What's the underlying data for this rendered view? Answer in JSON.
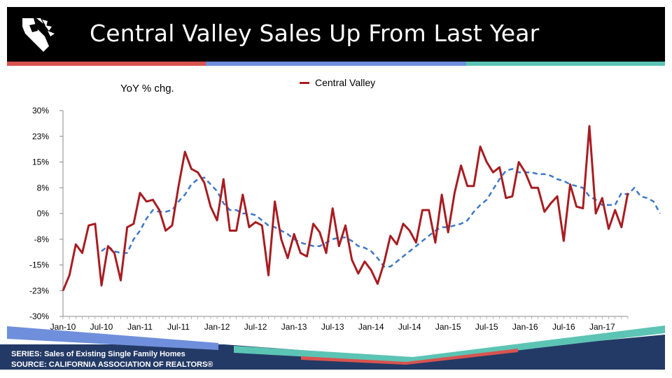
{
  "header": {
    "title": "Central Valley Sales Up From Last Year",
    "logo_icon": "california-realtors-logo-icon"
  },
  "colors": {
    "header_bg": "#000000",
    "stripe_red": "#d9534f",
    "stripe_blue": "#6f8fdc",
    "stripe_teal": "#5cc4b4",
    "series": "#a71d22",
    "trend": "#3d78c8",
    "footer_navy": "#243a66"
  },
  "chart_data": {
    "type": "line",
    "ylabel": "YoY % chg.",
    "xlabel": "",
    "ylim": [
      -30,
      30
    ],
    "yticks": [
      "30%",
      "23%",
      "15%",
      "8%",
      "0%",
      "-8%",
      "-15%",
      "-23%",
      "-30%"
    ],
    "xticks": [
      "Jan-10",
      "Jul-10",
      "Jan-11",
      "Jul-11",
      "Jan-12",
      "Jul-12",
      "Jan-13",
      "Jul-13",
      "Jan-14",
      "Jul-14",
      "Jan-15",
      "Jul-15",
      "Jan-16",
      "Jul-16",
      "Jan-17"
    ],
    "grid": false,
    "legend_position": "top",
    "series": [
      {
        "name": "Central Valley",
        "style": "solid",
        "start": "Jan-10",
        "values": [
          -22.5,
          -18,
          -9,
          -11.5,
          -3.5,
          -3,
          -21,
          -9.5,
          -11.5,
          -19.5,
          -4,
          -3,
          6,
          3.5,
          4,
          1,
          -5,
          -3.5,
          8,
          18,
          13,
          12,
          9,
          2,
          -2,
          10,
          -5,
          -5,
          5.5,
          -4,
          -2.5,
          -3.5,
          -18,
          3.5,
          -7.5,
          -13,
          -6,
          -11.5,
          -12.5,
          -3,
          -5.5,
          -11.5,
          1.5,
          -9.5,
          -3.5,
          -13.5,
          -17.5,
          -14,
          -16.5,
          -20.5,
          -14.5,
          -6.5,
          -9,
          -3,
          -5,
          -8.5,
          1,
          1,
          -8.5,
          5.5,
          -5.5,
          6,
          14,
          8,
          8,
          19.5,
          15,
          12,
          13.5,
          4.5,
          5,
          15,
          12,
          7.5,
          7.5,
          0.5,
          3,
          5,
          -8,
          8.5,
          2,
          1.5,
          25.5,
          0,
          4.5,
          -4.5,
          1,
          -4,
          6
        ]
      },
      {
        "name": "",
        "style": "dashed",
        "start": "Jul-10",
        "values": [
          -11,
          -9.5,
          -11,
          -11.5,
          -11.5,
          -7.5,
          -5,
          -1.5,
          1,
          0.5,
          0.5,
          1,
          3.5,
          5.5,
          8.5,
          10,
          10.5,
          8.5,
          6.5,
          3,
          1,
          1,
          0,
          0,
          -0.5,
          -2,
          -3.5,
          -4,
          -5,
          -6,
          -7.5,
          -8.5,
          -9,
          -9.5,
          -9.5,
          -8.5,
          -7.5,
          -7,
          -7,
          -8,
          -9.5,
          -10,
          -11,
          -13,
          -15.5,
          -15.5,
          -14,
          -12.5,
          -11,
          -9.5,
          -8,
          -6.5,
          -5,
          -4,
          -4,
          -3.5,
          -3,
          -2,
          0.5,
          2.5,
          4,
          7,
          10,
          12.5,
          13,
          12,
          12,
          12,
          11.5,
          11.5,
          11,
          10,
          9.5,
          8.5,
          8,
          7.5,
          5,
          4,
          2.5,
          2.5,
          2.5,
          6,
          5.5,
          7.5,
          5,
          4.5,
          3.5,
          0
        ]
      }
    ]
  },
  "footer": {
    "series_line": "SERIES: Sales of Existing Single Family Homes",
    "source_line": "SOURCE:  CALIFORNIA ASSOCIATION OF REALTORS®"
  }
}
